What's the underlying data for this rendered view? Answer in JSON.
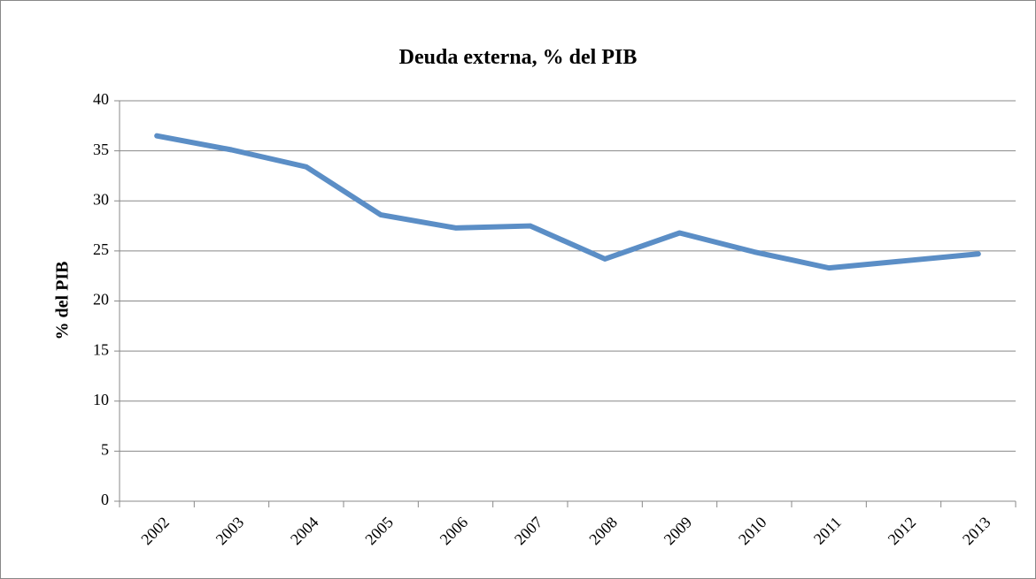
{
  "chart_data": {
    "type": "line",
    "title": "Deuda externa, % del PIB",
    "y_label": "% del PIB",
    "categories": [
      "2002",
      "2003",
      "2004",
      "2005",
      "2006",
      "2007",
      "2008",
      "2009",
      "2010",
      "2011",
      "2012",
      "2013"
    ],
    "values": [
      36.5,
      35.1,
      33.4,
      28.6,
      27.3,
      27.5,
      24.2,
      26.8,
      24.9,
      23.3,
      24.0,
      24.7
    ],
    "color": "#5b8ec6",
    "ylim": [
      0,
      40
    ],
    "yticks": [
      0,
      5,
      10,
      15,
      20,
      25,
      30,
      35,
      40
    ],
    "grid": true
  }
}
